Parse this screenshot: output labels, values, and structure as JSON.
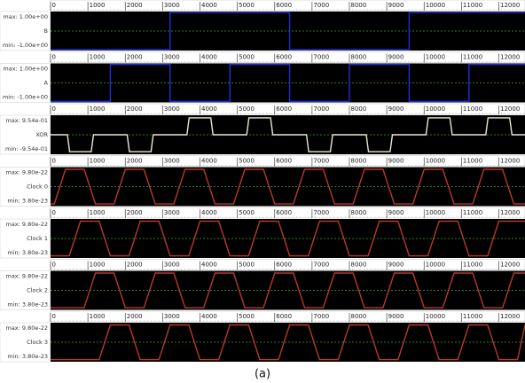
{
  "chart_data": [
    {
      "type": "line",
      "title": "B",
      "annotations": [
        "max: 1.00e+00",
        "min: -1.00e+00"
      ],
      "color": "#1f2fd6",
      "xlim": [
        0,
        12700
      ],
      "xticks": [
        0,
        1000,
        2000,
        3000,
        4000,
        5000,
        6000,
        7000,
        8000,
        9000,
        10000,
        11000,
        12000
      ],
      "ylim": [
        -1.06,
        1.06
      ],
      "x": [
        0,
        3200,
        3200,
        6400,
        6400,
        9600,
        9600,
        12700
      ],
      "values": [
        -1,
        -1,
        1,
        1,
        -1,
        -1,
        1,
        1
      ]
    },
    {
      "type": "line",
      "title": "A",
      "annotations": [
        "max: 1.00e+00",
        "min: -1.00e+00"
      ],
      "color": "#1f2fd6",
      "xlim": [
        0,
        12700
      ],
      "xticks": [
        0,
        1000,
        2000,
        3000,
        4000,
        5000,
        6000,
        7000,
        8000,
        9000,
        10000,
        11000,
        12000
      ],
      "ylim": [
        -1.06,
        1.06
      ],
      "x": [
        0,
        1600,
        1600,
        3200,
        3200,
        4800,
        4800,
        6400,
        6400,
        8000,
        8000,
        9600,
        9600,
        11200,
        11200,
        12700
      ],
      "values": [
        -1,
        -1,
        1,
        1,
        -1,
        -1,
        1,
        1,
        -1,
        -1,
        1,
        1,
        -1,
        -1,
        1,
        1
      ]
    },
    {
      "type": "line",
      "title": "XOR",
      "annotations": [
        "max: 9.54e-01",
        "min: -9.54e-01"
      ],
      "color": "#ece6cf",
      "xlim": [
        0,
        12700
      ],
      "xticks": [
        0,
        1000,
        2000,
        3000,
        4000,
        5000,
        6000,
        7000,
        8000,
        9000,
        10000,
        11000,
        12000
      ],
      "ylim": [
        -1.1,
        1.1
      ],
      "x": [
        0,
        450,
        510,
        1090,
        1150,
        2050,
        2110,
        2690,
        2750,
        3650,
        3710,
        4290,
        4350,
        5250,
        5310,
        5890,
        5950,
        6850,
        6910,
        7490,
        7550,
        8450,
        8510,
        9090,
        9150,
        10050,
        10110,
        10690,
        10750,
        11650,
        11710,
        12290,
        12350,
        12700
      ],
      "values": [
        0,
        0,
        -0.954,
        -0.954,
        0,
        0,
        -0.954,
        -0.954,
        0,
        0,
        0.954,
        0.954,
        0,
        0,
        0.954,
        0.954,
        0,
        0,
        -0.954,
        -0.954,
        0,
        0,
        -0.954,
        -0.954,
        0,
        0,
        0.954,
        0.954,
        0,
        0,
        0.954,
        0.954,
        0,
        0
      ]
    },
    {
      "type": "line",
      "title": "Clock 0",
      "annotations": [
        "max: 9.80e-22",
        "min: 3.80e-23"
      ],
      "color": "#b8392c",
      "xlim": [
        0,
        12700
      ],
      "xticks": [
        0,
        1000,
        2000,
        3000,
        4000,
        5000,
        6000,
        7000,
        8000,
        9000,
        10000,
        11000,
        12000
      ],
      "ylim": [
        -2e-23,
        1.04e-21
      ],
      "x": [
        0,
        100,
        400,
        900,
        1200,
        1700,
        2000,
        2500,
        2800,
        3300,
        3600,
        4100,
        4400,
        4900,
        5200,
        5700,
        6000,
        6500,
        6800,
        7300,
        7600,
        8100,
        8400,
        8900,
        9200,
        9700,
        10000,
        10500,
        10800,
        11300,
        11600,
        12100,
        12400,
        12700
      ],
      "values": [
        3.8e-23,
        3.8e-23,
        9.8e-22,
        9.8e-22,
        3.8e-23,
        3.8e-23,
        9.8e-22,
        9.8e-22,
        3.8e-23,
        3.8e-23,
        9.8e-22,
        9.8e-22,
        3.8e-23,
        3.8e-23,
        9.8e-22,
        9.8e-22,
        3.8e-23,
        3.8e-23,
        9.8e-22,
        9.8e-22,
        3.8e-23,
        3.8e-23,
        9.8e-22,
        9.8e-22,
        3.8e-23,
        3.8e-23,
        9.8e-22,
        9.8e-22,
        3.8e-23,
        3.8e-23,
        9.8e-22,
        9.8e-22,
        3.8e-23,
        3.8e-23
      ]
    },
    {
      "type": "line",
      "title": "Clock 1",
      "annotations": [
        "max: 9.80e-22",
        "min: 3.80e-23"
      ],
      "color": "#b8392c",
      "xlim": [
        0,
        12700
      ],
      "xticks": [
        0,
        1000,
        2000,
        3000,
        4000,
        5000,
        6000,
        7000,
        8000,
        9000,
        10000,
        11000,
        12000
      ],
      "ylim": [
        -2e-23,
        1.04e-21
      ],
      "x": [
        0,
        500,
        800,
        1300,
        1600,
        2100,
        2400,
        2900,
        3200,
        3700,
        4000,
        4500,
        4800,
        5300,
        5600,
        6100,
        6400,
        6900,
        7200,
        7700,
        8000,
        8500,
        8800,
        9300,
        9600,
        10100,
        10400,
        10900,
        11200,
        11700,
        12000,
        12500,
        12700
      ],
      "values": [
        3.8e-23,
        3.8e-23,
        9.8e-22,
        9.8e-22,
        3.8e-23,
        3.8e-23,
        9.8e-22,
        9.8e-22,
        3.8e-23,
        3.8e-23,
        9.8e-22,
        9.8e-22,
        3.8e-23,
        3.8e-23,
        9.8e-22,
        9.8e-22,
        3.8e-23,
        3.8e-23,
        9.8e-22,
        9.8e-22,
        3.8e-23,
        3.8e-23,
        9.8e-22,
        9.8e-22,
        3.8e-23,
        3.8e-23,
        9.8e-22,
        9.8e-22,
        3.8e-23,
        3.8e-23,
        9.8e-22,
        9.8e-22,
        9.8e-22
      ]
    },
    {
      "type": "line",
      "title": "Clock 2",
      "annotations": [
        "max: 9.80e-22",
        "min: 3.80e-23"
      ],
      "color": "#b8392c",
      "xlim": [
        0,
        12700
      ],
      "xticks": [
        0,
        1000,
        2000,
        3000,
        4000,
        5000,
        6000,
        7000,
        8000,
        9000,
        10000,
        11000,
        12000
      ],
      "ylim": [
        -2e-23,
        1.04e-21
      ],
      "x": [
        0,
        900,
        1200,
        1700,
        2000,
        2500,
        2800,
        3300,
        3600,
        4100,
        4400,
        4900,
        5200,
        5700,
        6000,
        6500,
        6800,
        7300,
        7600,
        8100,
        8400,
        8900,
        9200,
        9700,
        10000,
        10500,
        10800,
        11300,
        11600,
        12100,
        12400,
        12700
      ],
      "values": [
        3.8e-23,
        3.8e-23,
        9.8e-22,
        9.8e-22,
        3.8e-23,
        3.8e-23,
        9.8e-22,
        9.8e-22,
        3.8e-23,
        3.8e-23,
        9.8e-22,
        9.8e-22,
        3.8e-23,
        3.8e-23,
        9.8e-22,
        9.8e-22,
        3.8e-23,
        3.8e-23,
        9.8e-22,
        9.8e-22,
        3.8e-23,
        3.8e-23,
        9.8e-22,
        9.8e-22,
        3.8e-23,
        3.8e-23,
        9.8e-22,
        9.8e-22,
        3.8e-23,
        3.8e-23,
        9.8e-22,
        9.8e-22
      ]
    },
    {
      "type": "line",
      "title": "Clock 3",
      "annotations": [
        "max: 9.80e-22",
        "min: 3.80e-23"
      ],
      "color": "#b8392c",
      "xlim": [
        0,
        12700
      ],
      "xticks": [
        0,
        1000,
        2000,
        3000,
        4000,
        5000,
        6000,
        7000,
        8000,
        9000,
        10000,
        11000,
        12000
      ],
      "ylim": [
        -2e-23,
        1.04e-21
      ],
      "x": [
        0,
        1300,
        1600,
        2100,
        2400,
        2900,
        3200,
        3700,
        4000,
        4500,
        4800,
        5300,
        5600,
        6100,
        6400,
        6900,
        7200,
        7700,
        8000,
        8500,
        8800,
        9300,
        9600,
        10100,
        10400,
        10900,
        11200,
        11700,
        12000,
        12500,
        12700
      ],
      "values": [
        3.8e-23,
        3.8e-23,
        9.8e-22,
        9.8e-22,
        3.8e-23,
        3.8e-23,
        9.8e-22,
        9.8e-22,
        3.8e-23,
        3.8e-23,
        9.8e-22,
        9.8e-22,
        3.8e-23,
        3.8e-23,
        9.8e-22,
        9.8e-22,
        3.8e-23,
        3.8e-23,
        9.8e-22,
        9.8e-22,
        3.8e-23,
        3.8e-23,
        9.8e-22,
        9.8e-22,
        3.8e-23,
        3.8e-23,
        9.8e-22,
        9.8e-22,
        3.8e-23,
        3.8e-23,
        9.8e-22
      ]
    }
  ],
  "caption": "(a)"
}
